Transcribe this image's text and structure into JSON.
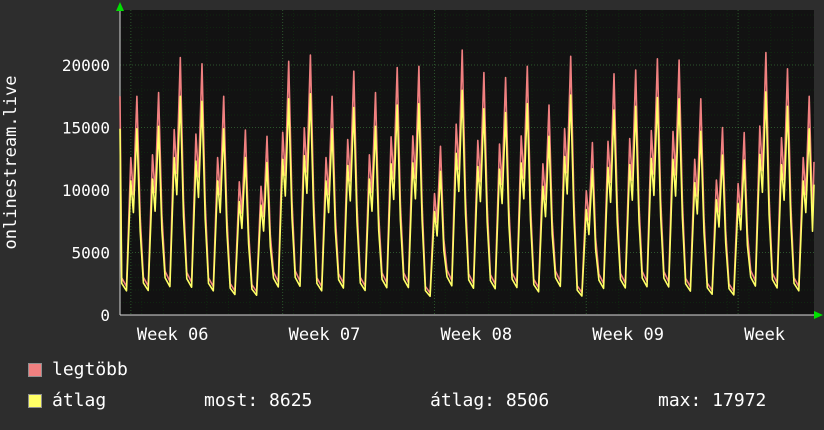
{
  "title": {
    "rotated": "onlinestream.live"
  },
  "chart_data": {
    "type": "line",
    "title": "onlinestream.live",
    "x_axis": {
      "unit": "day",
      "days_visible": 32,
      "week_tick_days": [
        0.5,
        7.5,
        14.5,
        21.5,
        28.5
      ],
      "week_labels": [
        "Week 06",
        "Week 07",
        "Week 08",
        "Week 09",
        "Week"
      ]
    },
    "y_axis": {
      "min": 0,
      "max": 24400,
      "ticks": [
        0,
        5000,
        10000,
        15000,
        20000
      ]
    },
    "grid": {
      "minor_color": "rgba(0,220,0,0.10)",
      "major_color": "rgba(110,255,110,0.28)"
    },
    "intraday_profile": {
      "offsets": [
        0.08,
        0.3,
        0.5,
        0.62,
        0.78,
        0.93
      ],
      "multipliers": [
        0.17,
        0.13,
        0.72,
        0.55,
        1.0,
        0.45
      ]
    },
    "series": [
      {
        "name": "legtöbb",
        "color": "#f08080",
        "daily_peaks": [
          17500,
          17800,
          20600,
          20100,
          17500,
          14800,
          14300,
          20300,
          20800,
          17500,
          19500,
          17800,
          19800,
          19900,
          13500,
          21200,
          19400,
          19000,
          19900,
          16800,
          20700,
          13800,
          19300,
          19600,
          20500,
          20400,
          17300,
          15000,
          14600,
          21000,
          19700,
          17500
        ]
      },
      {
        "name": "átlag",
        "color": "#ffff66",
        "daily_peaks": [
          14900,
          15100,
          17500,
          17100,
          14900,
          12600,
          12200,
          17300,
          17700,
          14900,
          16600,
          15100,
          16800,
          16900,
          11500,
          17972,
          16500,
          16200,
          16900,
          14300,
          17600,
          11700,
          16400,
          16700,
          17400,
          17300,
          14700,
          12800,
          12400,
          17850,
          16700,
          14900
        ]
      }
    ]
  },
  "legend": {
    "items": [
      {
        "label": "legtöbb",
        "color": "#f08080"
      },
      {
        "label": "átlag",
        "color": "#ffff66"
      }
    ]
  },
  "stats": [
    {
      "text": "most: 8625"
    },
    {
      "text": "átlag: 8506"
    },
    {
      "text": "max: 17972"
    }
  ],
  "colors": {
    "background": "#2d2d2d",
    "plot_background": "#121212",
    "axis": "#d8d8d8",
    "arrow": "#00e000",
    "text": "#ffffff"
  }
}
